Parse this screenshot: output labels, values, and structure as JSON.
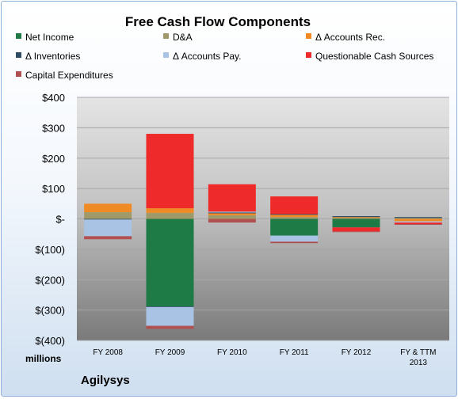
{
  "chart_data": {
    "type": "bar",
    "stacked": true,
    "title": "Free Cash Flow Components",
    "unit_label": "millions",
    "company": "Agilysys",
    "categories": [
      "FY 2008",
      "FY 2009",
      "FY 2010",
      "FY 2011",
      "FY 2012",
      "FY & TTM 2013"
    ],
    "ylim": [
      -400,
      400
    ],
    "y_ticks": [
      400,
      300,
      200,
      100,
      0,
      -100,
      -200,
      -300,
      -400
    ],
    "y_tick_labels": [
      "$400",
      "$300",
      "$200",
      "$100",
      "$-",
      "$(100)",
      "$(200)",
      "$(300)",
      "$(400)"
    ],
    "grid": true,
    "legend_position": "top",
    "series": [
      {
        "name": "Net Income",
        "color": "#1e7b45",
        "values": [
          0,
          -288,
          0,
          -55,
          -28,
          0
        ]
      },
      {
        "name": "D&A",
        "color": "#a09a6a",
        "values": [
          22,
          20,
          12,
          6,
          4,
          3
        ]
      },
      {
        "name": "Δ Accounts Rec.",
        "color": "#f08a24",
        "values": [
          28,
          15,
          8,
          8,
          2,
          -8
        ]
      },
      {
        "name": "Δ Inventories",
        "color": "#2f4a63",
        "values": [
          -2,
          -2,
          1,
          2,
          3,
          3
        ]
      },
      {
        "name": "Δ Accounts Pay.",
        "color": "#a8c3e4",
        "values": [
          -55,
          -62,
          3,
          -20,
          0,
          -4
        ]
      },
      {
        "name": "Questionable Cash Sources",
        "color": "#ee2a2a",
        "values": [
          0,
          245,
          90,
          58,
          -13,
          -5
        ]
      },
      {
        "name": "Capital Expenditures",
        "color": "#b05050",
        "values": [
          -10,
          -10,
          -12,
          -5,
          -2,
          -2
        ]
      }
    ]
  }
}
